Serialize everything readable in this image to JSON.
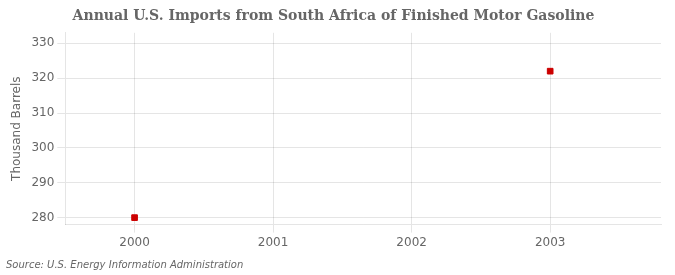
{
  "chart_data": {
    "type": "scatter",
    "title": "Annual U.S. Imports from South Africa of Finished Motor Gasoline",
    "ylabel": "Thousand Barrels",
    "annotations": [
      "Source: U.S. Energy Information Administration"
    ],
    "x": [
      2000,
      2003
    ],
    "values": [
      280,
      322
    ],
    "color": "#cc0000",
    "marker": "square",
    "xlim": [
      1999.5,
      2003.8
    ],
    "ylim": [
      278,
      333
    ],
    "xticks": [
      2000,
      2001,
      2002,
      2003
    ],
    "yticks": [
      280,
      290,
      300,
      310,
      320,
      330
    ],
    "grid": true
  }
}
